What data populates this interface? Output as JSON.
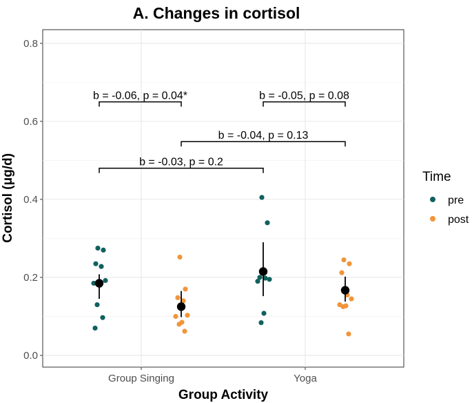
{
  "chart_data": {
    "type": "scatter",
    "title": "A. Changes in cortisol",
    "xlabel": "Group Activity",
    "ylabel": "Cortisol (μg/d)",
    "ylim": [
      -0.03,
      0.835
    ],
    "yticks": [
      0.0,
      0.2,
      0.4,
      0.6,
      0.8
    ],
    "ytick_labels": [
      "0.0",
      "0.2",
      "0.4",
      "0.6",
      "0.8"
    ],
    "categories": [
      "Group Singing",
      "Yoga"
    ],
    "grid": true,
    "legend": {
      "title": "Time",
      "position": "right",
      "entries": [
        {
          "name": "pre",
          "color": "#11615e"
        },
        {
          "name": "post",
          "color": "#f0953a"
        }
      ]
    },
    "groups": [
      {
        "category": "Group Singing",
        "time": "pre",
        "color": "#11615e",
        "points": [
          0.275,
          0.27,
          0.235,
          0.228,
          0.192,
          0.185,
          0.18,
          0.13,
          0.097,
          0.07
        ],
        "mean": 0.185,
        "ci": [
          0.145,
          0.208
        ]
      },
      {
        "category": "Group Singing",
        "time": "post",
        "color": "#f0953a",
        "points": [
          0.252,
          0.17,
          0.148,
          0.14,
          0.103,
          0.1,
          0.085,
          0.08,
          0.062
        ],
        "mean": 0.125,
        "ci": [
          0.098,
          0.165
        ]
      },
      {
        "category": "Yoga",
        "time": "pre",
        "color": "#11615e",
        "points": [
          0.405,
          0.34,
          0.2,
          0.198,
          0.195,
          0.19,
          0.108,
          0.084
        ],
        "mean": 0.215,
        "ci": [
          0.152,
          0.29
        ]
      },
      {
        "category": "Yoga",
        "time": "post",
        "color": "#f0953a",
        "points": [
          0.245,
          0.235,
          0.212,
          0.155,
          0.145,
          0.13,
          0.127,
          0.125,
          0.055
        ],
        "mean": 0.167,
        "ci": [
          0.138,
          0.202
        ]
      }
    ],
    "brackets": [
      {
        "from": "Group Singing pre",
        "to": "Group Singing post",
        "y": 0.65,
        "label": "b = -0.06, p = 0.04*"
      },
      {
        "from": "Yoga pre",
        "to": "Yoga post",
        "y": 0.65,
        "label": "b = -0.05, p = 0.08"
      },
      {
        "from": "Group Singing post",
        "to": "Yoga post",
        "y": 0.548,
        "label": "b = -0.04, p = 0.13"
      },
      {
        "from": "Group Singing pre",
        "to": "Yoga pre",
        "y": 0.48,
        "label": "b = -0.03, p = 0.2"
      }
    ]
  }
}
